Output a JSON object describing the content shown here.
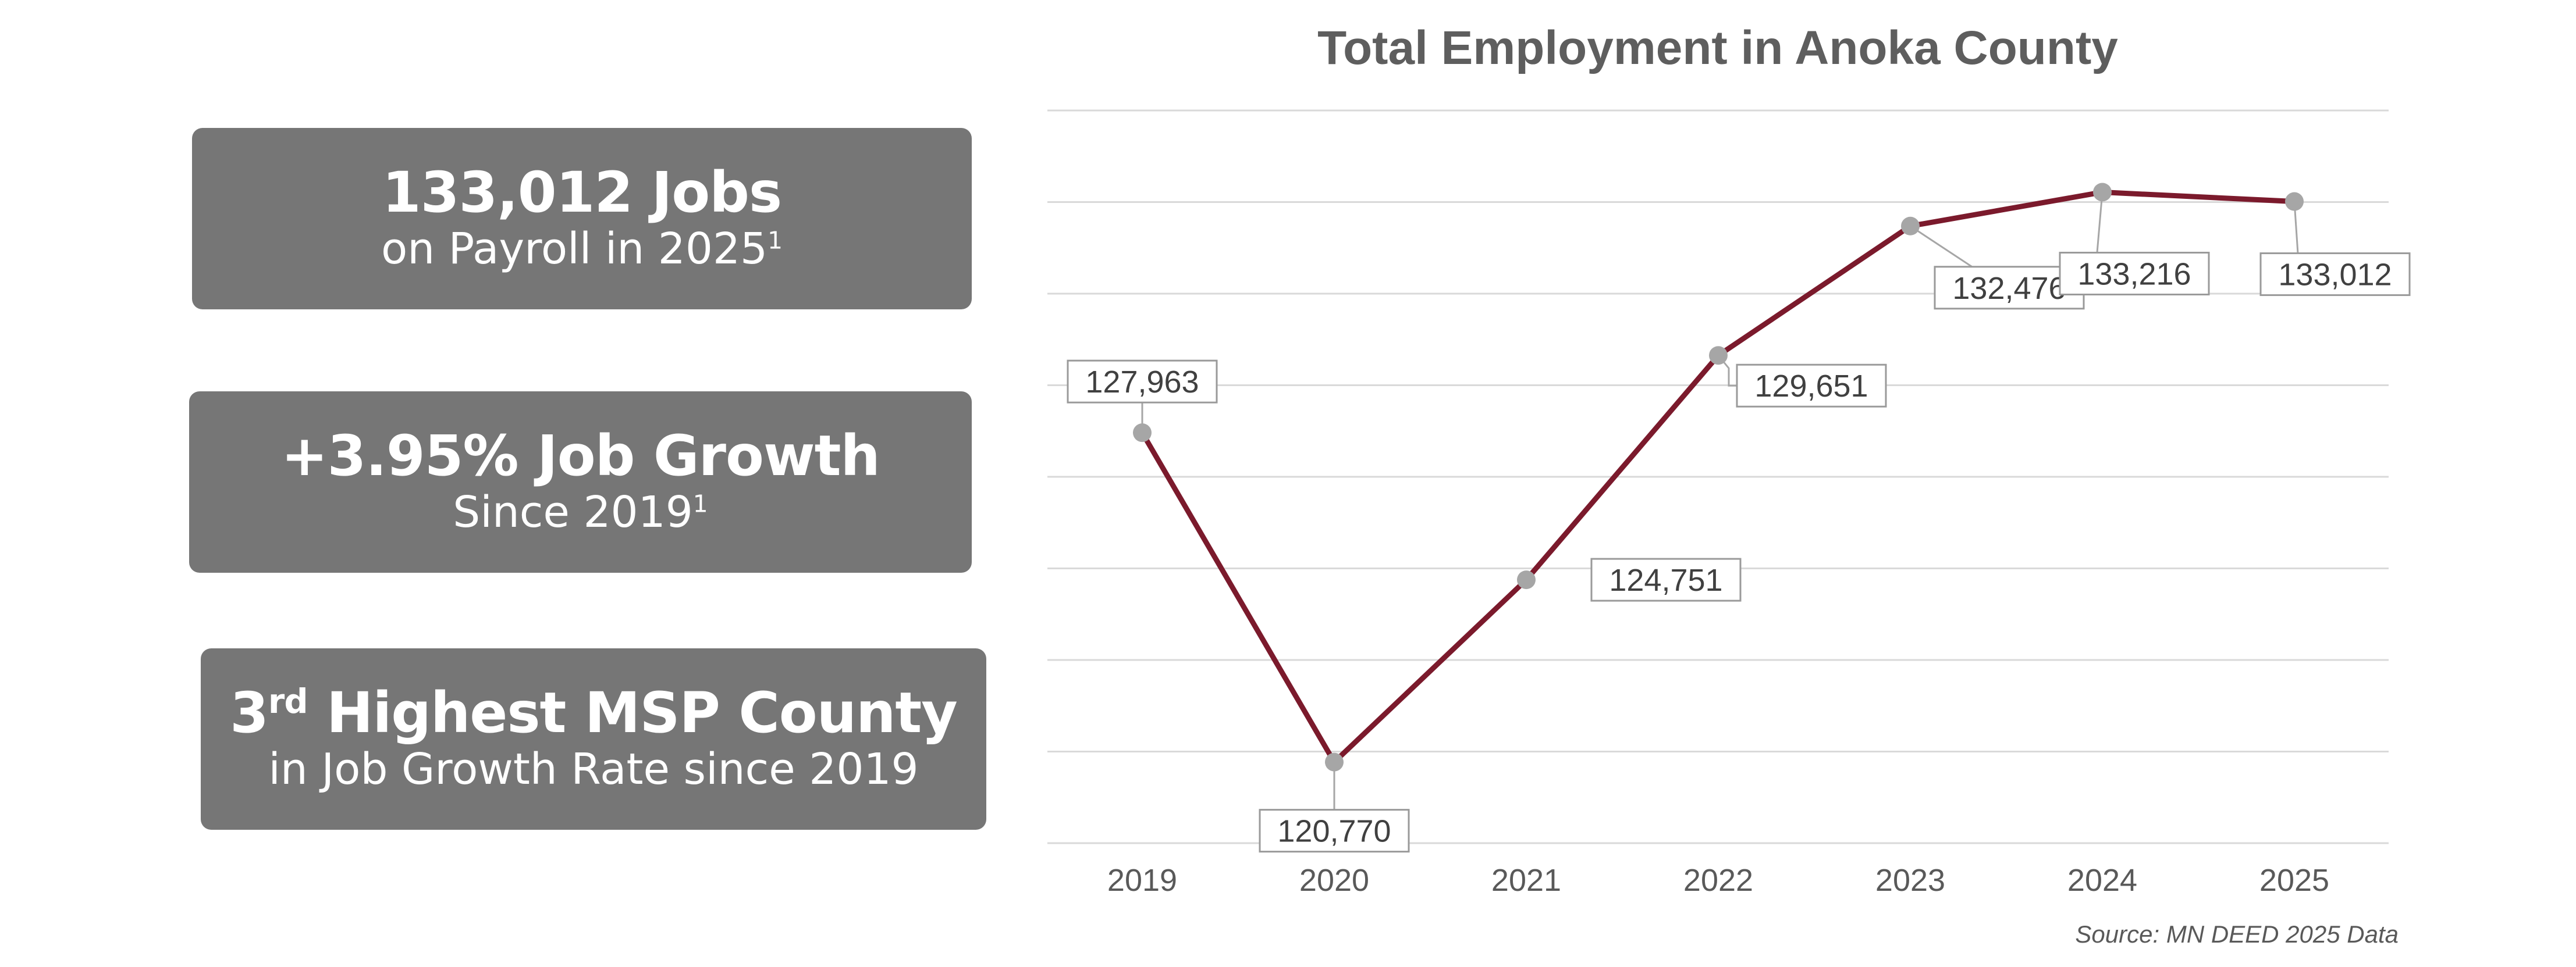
{
  "stats": [
    {
      "headline": "133,012 Jobs",
      "headline_sup": "",
      "headline_rest": "",
      "sub": "on Payroll in 2025",
      "sub_sup": "1"
    },
    {
      "headline": "+3.95% Job Growth",
      "headline_sup": "",
      "headline_rest": "",
      "sub": "Since 2019",
      "sub_sup": "1"
    },
    {
      "headline": "3",
      "headline_sup": "rd",
      "headline_rest": " Highest MSP County",
      "sub": "in Job Growth Rate since 2019",
      "sub_sup": ""
    }
  ],
  "source": "Source: MN DEED 2025 Data",
  "colors": {
    "box": "#767676",
    "line": "#7b1a2c",
    "marker": "#a6a6a6"
  },
  "chart_data": {
    "type": "line",
    "title": "Total Employment in Anoka County",
    "xlabel": "",
    "ylabel": "",
    "categories": [
      "2019",
      "2020",
      "2021",
      "2022",
      "2023",
      "2024",
      "2025"
    ],
    "series": [
      {
        "values": [
          127963,
          120770,
          124751,
          129651,
          132476,
          133216,
          133012
        ],
        "labels": [
          "127,963",
          "120,770",
          "124,751",
          "129,651",
          "132,476",
          "133,216",
          "133,012"
        ]
      }
    ],
    "ylim": [
      119000,
      135000
    ],
    "y_gridlines": [
      119000,
      121000,
      123000,
      125000,
      127000,
      129000,
      131000,
      133000,
      135000
    ],
    "y_tick_labels_shown": false,
    "grid": true,
    "legend": "none"
  }
}
